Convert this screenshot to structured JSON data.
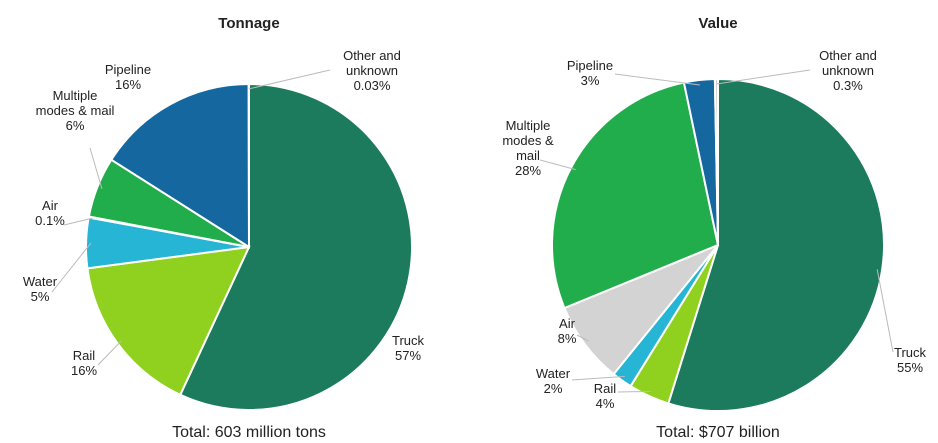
{
  "chart_data": [
    {
      "type": "pie",
      "title": "Tonnage",
      "total": "Total: 603 million tons",
      "categories": [
        "Truck",
        "Rail",
        "Water",
        "Air",
        "Multiple\nmodes & mail",
        "Pipeline",
        "Other and\nunknown"
      ],
      "values": [
        57,
        16,
        5,
        0.1,
        6,
        16,
        0.03
      ],
      "value_labels": [
        "57%",
        "16%",
        "5%",
        "0.1%",
        "6%",
        "16%",
        "0.03%"
      ],
      "colors": [
        "#1b7b5c",
        "#8fd11e",
        "#27b5d6",
        "#27b5d6",
        "#22ad4c",
        "#14689f",
        "#cfcfcf"
      ]
    },
    {
      "type": "pie",
      "title": "Value",
      "total": "Total: $707 billion",
      "categories": [
        "Truck",
        "Rail",
        "Water",
        "Air",
        "Multiple\nmodes &\nmail",
        "Pipeline",
        "Other and\nunknown"
      ],
      "values": [
        55,
        4,
        2,
        8,
        28,
        3,
        0.3
      ],
      "value_labels": [
        "55%",
        "4%",
        "2%",
        "8%",
        "28%",
        "3%",
        "0.3%"
      ],
      "colors": [
        "#1b7b5c",
        "#8fd11e",
        "#27b5d6",
        "#d3d3d3",
        "#22ad4c",
        "#14689f",
        "#cfcfcf"
      ]
    }
  ]
}
